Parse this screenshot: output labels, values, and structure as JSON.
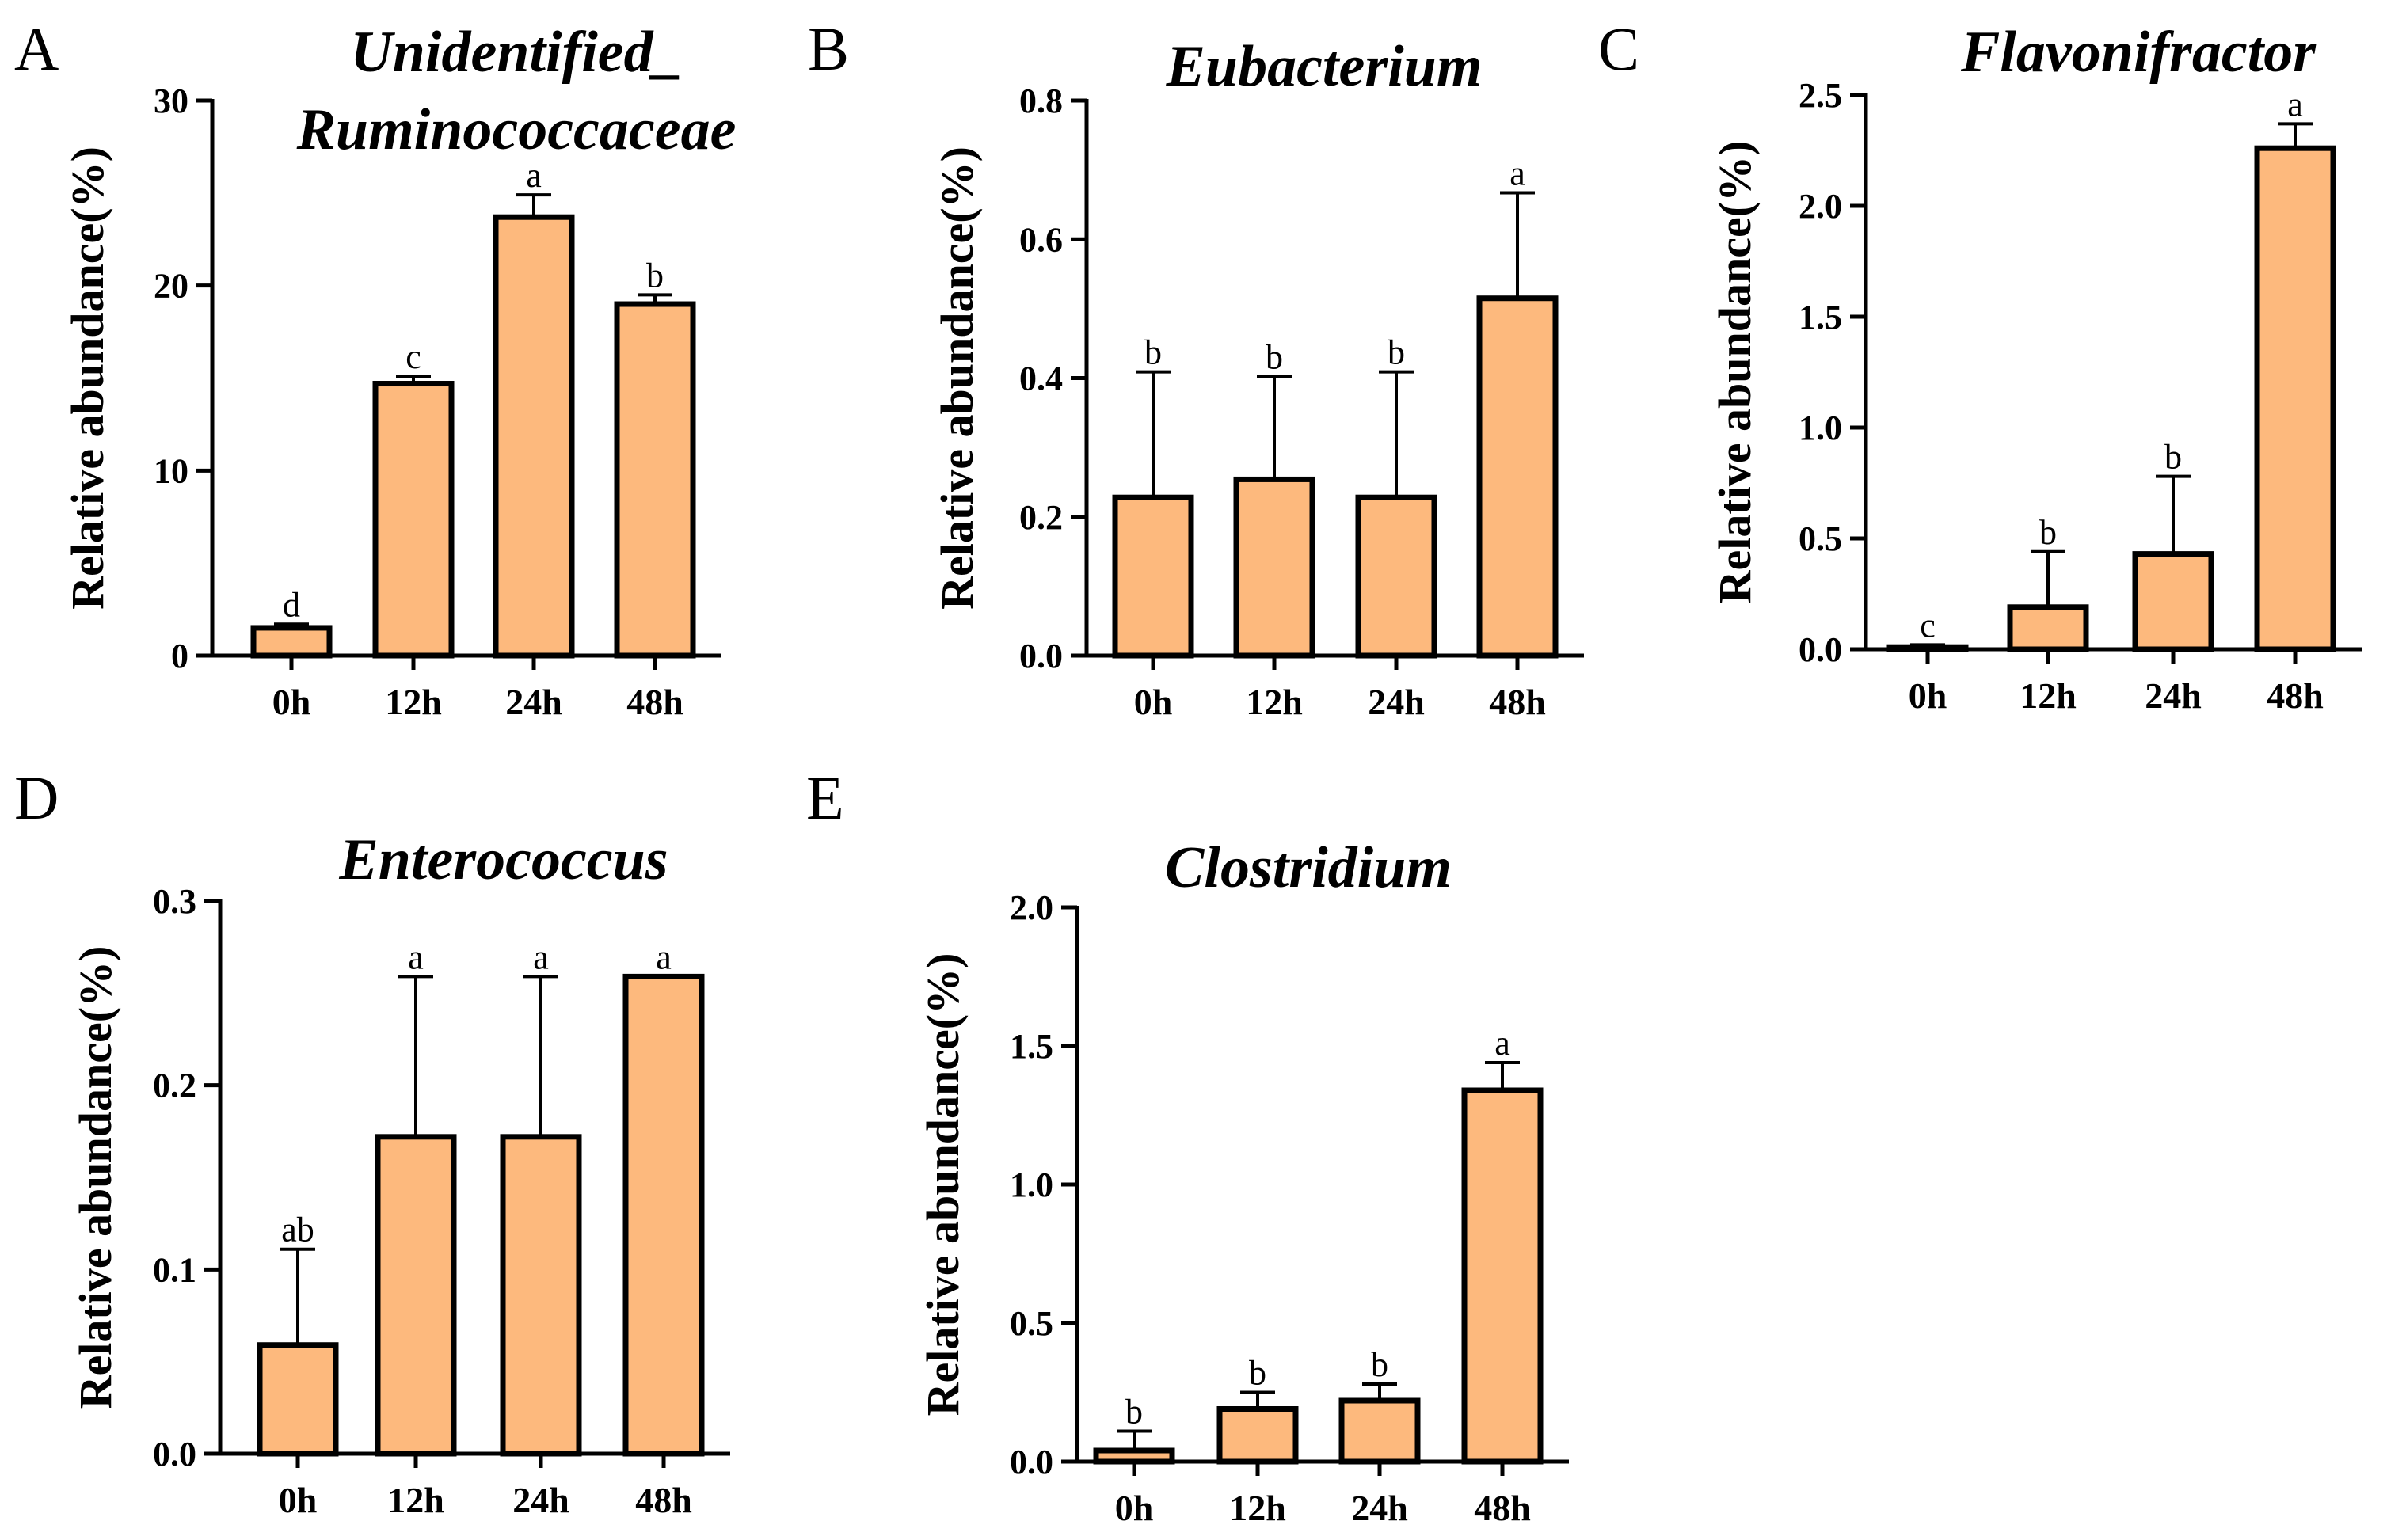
{
  "chart_data": [
    {
      "id": "A",
      "type": "bar",
      "panel_label": "A",
      "title": [
        "Unidentified_",
        "Ruminococcaceae"
      ],
      "ylabel": "Relative abundance(%)",
      "xlabel": "",
      "categories": [
        "0h",
        "12h",
        "24h",
        "48h"
      ],
      "values": [
        1.5,
        14.7,
        23.7,
        19.0
      ],
      "errors": [
        0.2,
        0.4,
        1.2,
        0.5
      ],
      "significance": [
        "d",
        "c",
        "a",
        "b"
      ],
      "ylim": [
        0,
        30
      ],
      "yticks": [
        0,
        10,
        20,
        30
      ],
      "ytick_labels": [
        "0",
        "10",
        "20",
        "30"
      ]
    },
    {
      "id": "B",
      "type": "bar",
      "panel_label": "B",
      "title": [
        "Eubacterium"
      ],
      "ylabel": "Relative abundance(%)",
      "xlabel": "",
      "categories": [
        "0h",
        "12h",
        "24h",
        "48h"
      ],
      "values": [
        0.228,
        0.254,
        0.228,
        0.515
      ],
      "errors": [
        0.181,
        0.148,
        0.181,
        0.152
      ],
      "significance": [
        "b",
        "b",
        "b",
        "a"
      ],
      "ylim": [
        0,
        0.8
      ],
      "yticks": [
        0,
        0.2,
        0.4,
        0.6,
        0.8
      ],
      "ytick_labels": [
        "0.0",
        "0.2",
        "0.4",
        "0.6",
        "0.8"
      ]
    },
    {
      "id": "C",
      "type": "bar",
      "panel_label": "C",
      "title": [
        "Flavonifractor"
      ],
      "ylabel": "Relative abundance(%)",
      "xlabel": "",
      "categories": [
        "0h",
        "12h",
        "24h",
        "48h"
      ],
      "values": [
        0.01,
        0.19,
        0.43,
        2.26
      ],
      "errors": [
        0.01,
        0.25,
        0.35,
        0.11
      ],
      "significance": [
        "c",
        "b",
        "b",
        "a"
      ],
      "ylim": [
        0,
        2.5
      ],
      "yticks": [
        0,
        0.5,
        1.0,
        1.5,
        2.0,
        2.5
      ],
      "ytick_labels": [
        "0.0",
        "0.5",
        "1.0",
        "1.5",
        "2.0",
        "2.5"
      ]
    },
    {
      "id": "D",
      "type": "bar",
      "panel_label": "D",
      "title": [
        "Enterococcus"
      ],
      "ylabel": "Relative abundance(%)",
      "xlabel": "",
      "categories": [
        "0h",
        "12h",
        "24h",
        "48h"
      ],
      "values": [
        0.059,
        0.172,
        0.172,
        0.259
      ],
      "errors": [
        0.052,
        0.087,
        0.087,
        0.0
      ],
      "significance": [
        "ab",
        "a",
        "a",
        "a"
      ],
      "ylim": [
        0,
        0.3
      ],
      "yticks": [
        0,
        0.1,
        0.2,
        0.3
      ],
      "ytick_labels": [
        "0.0",
        "0.1",
        "0.2",
        "0.3"
      ]
    },
    {
      "id": "E",
      "type": "bar",
      "panel_label": "E",
      "title": [
        "Clostridium"
      ],
      "ylabel": "Relative abundance(%)",
      "xlabel": "",
      "categories": [
        "0h",
        "12h",
        "24h",
        "48h"
      ],
      "values": [
        0.04,
        0.19,
        0.22,
        1.34
      ],
      "errors": [
        0.07,
        0.06,
        0.06,
        0.1
      ],
      "significance": [
        "b",
        "b",
        "b",
        "a"
      ],
      "ylim": [
        0,
        2.0
      ],
      "yticks": [
        0,
        0.5,
        1.0,
        1.5,
        2.0
      ],
      "ytick_labels": [
        "0.0",
        "0.5",
        "1.0",
        "1.5",
        "2.0"
      ]
    }
  ]
}
